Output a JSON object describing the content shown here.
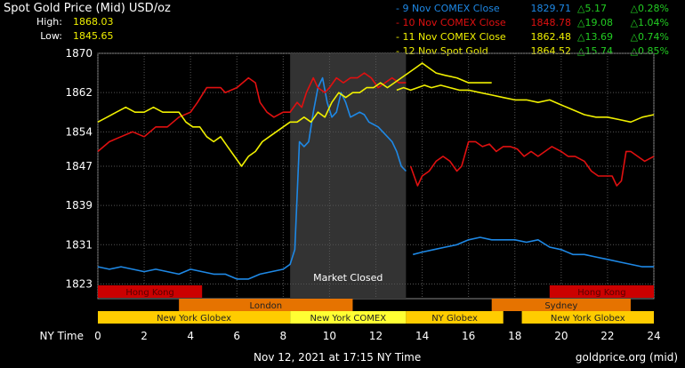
{
  "header": {
    "title": "Spot Gold Price (Mid) USD/oz",
    "high_label": "High:",
    "high_value": "1868.03",
    "low_label": "Low:",
    "low_value": "1845.65"
  },
  "legend": [
    {
      "label": "- 9 Nov COMEX Close",
      "price": "1829.71",
      "change": "△5.17",
      "pct": "△0.28%",
      "color": "#1e88e5"
    },
    {
      "label": "- 10 Nov COMEX Close",
      "price": "1848.78",
      "change": "△19.08",
      "pct": "△1.04%",
      "color": "#e01010"
    },
    {
      "label": "- 11 Nov COMEX Close",
      "price": "1862.48",
      "change": "△13.69",
      "pct": "△0.74%",
      "color": "#f0f000"
    },
    {
      "label": "- 12 Nov Spot Gold",
      "price": "1864.52",
      "change": "△15.74",
      "pct": "△0.85%",
      "color": "#f0f000"
    }
  ],
  "colors": {
    "up": "#22cc22",
    "axis": "#ffffff",
    "grid": "#555555",
    "closed_band": "#333333"
  },
  "market_closed_label": "Market Closed",
  "sessions": {
    "row1": [
      {
        "label": "Hong Kong",
        "start": 0,
        "end": 4.5,
        "color": "#cc0000"
      },
      {
        "label": "Hong Kong",
        "start": 19.5,
        "end": 24,
        "color": "#cc0000"
      }
    ],
    "row2": [
      {
        "label": "London",
        "start": 3.5,
        "end": 11,
        "color": "#e67300"
      },
      {
        "label": "Sydney",
        "start": 17,
        "end": 23,
        "color": "#e67300"
      }
    ],
    "row3": [
      {
        "label": "New York Globex",
        "start": 0,
        "end": 8.3,
        "color": "#ffcc00"
      },
      {
        "label": "New York COMEX",
        "start": 8.3,
        "end": 13.3,
        "color": "#ffff33"
      },
      {
        "label": "NY Globex",
        "start": 13.3,
        "end": 17.5,
        "color": "#ffcc00"
      },
      {
        "label": "New York Globex",
        "start": 18.3,
        "end": 24,
        "color": "#ffcc00"
      }
    ]
  },
  "footer": {
    "x_axis_name": "NY Time",
    "timestamp": "Nov 12, 2021 at 17:15 NY Time",
    "source": "goldprice.org (mid)"
  },
  "chart_data": {
    "type": "line",
    "title": "Spot Gold Price (Mid) USD/oz",
    "xlabel": "NY Time",
    "ylabel": "",
    "xlim": [
      0,
      24
    ],
    "ylim": [
      1820,
      1870
    ],
    "x_ticks": [
      0,
      2,
      4,
      6,
      8,
      10,
      12,
      14,
      16,
      18,
      20,
      22,
      24
    ],
    "y_ticks": [
      1823,
      1831,
      1839,
      1847,
      1854,
      1862,
      1870
    ],
    "grid": true,
    "market_closed": [
      8.3,
      13.3
    ],
    "series": [
      {
        "name": "9 Nov COMEX Close",
        "color": "#1e88e5",
        "segments": [
          [
            [
              0,
              1826.5
            ],
            [
              0.5,
              1826
            ],
            [
              1,
              1826.5
            ],
            [
              1.5,
              1826
            ],
            [
              2,
              1825.5
            ],
            [
              2.5,
              1826
            ],
            [
              3,
              1825.5
            ],
            [
              3.5,
              1825
            ],
            [
              4,
              1826
            ],
            [
              4.5,
              1825.5
            ],
            [
              5,
              1825
            ],
            [
              5.5,
              1825
            ],
            [
              6,
              1824
            ],
            [
              6.5,
              1824
            ],
            [
              7,
              1825
            ],
            [
              7.5,
              1825.5
            ],
            [
              8,
              1826
            ],
            [
              8.3,
              1827
            ],
            [
              8.5,
              1830
            ],
            [
              8.7,
              1852
            ],
            [
              8.9,
              1851
            ],
            [
              9.1,
              1852
            ],
            [
              9.3,
              1858
            ],
            [
              9.5,
              1863
            ],
            [
              9.7,
              1865
            ],
            [
              9.9,
              1860
            ],
            [
              10.1,
              1857
            ],
            [
              10.3,
              1858
            ],
            [
              10.5,
              1862
            ],
            [
              10.7,
              1860
            ],
            [
              10.9,
              1857
            ],
            [
              11.1,
              1857.5
            ],
            [
              11.3,
              1858
            ],
            [
              11.5,
              1857.5
            ],
            [
              11.7,
              1856
            ],
            [
              11.9,
              1855.5
            ],
            [
              12.1,
              1855
            ],
            [
              12.3,
              1854
            ],
            [
              12.5,
              1853
            ],
            [
              12.7,
              1852
            ],
            [
              12.9,
              1850
            ],
            [
              13.1,
              1847
            ],
            [
              13.3,
              1846
            ]
          ],
          [
            [
              13.6,
              1829
            ],
            [
              14,
              1829.5
            ],
            [
              14.5,
              1830
            ],
            [
              15,
              1830.5
            ],
            [
              15.5,
              1831
            ],
            [
              16,
              1832
            ],
            [
              16.5,
              1832.5
            ],
            [
              17,
              1832
            ],
            [
              17.5,
              1832
            ],
            [
              18,
              1832
            ],
            [
              18.5,
              1831.5
            ],
            [
              19,
              1832
            ],
            [
              19.5,
              1830.5
            ],
            [
              20,
              1830
            ],
            [
              20.5,
              1829
            ],
            [
              21,
              1829
            ],
            [
              21.5,
              1828.5
            ],
            [
              22,
              1828
            ],
            [
              22.5,
              1827.5
            ],
            [
              23,
              1827
            ],
            [
              23.5,
              1826.5
            ],
            [
              24,
              1826.5
            ]
          ]
        ]
      },
      {
        "name": "10 Nov COMEX Close",
        "color": "#e01010",
        "segments": [
          [
            [
              0,
              1850
            ],
            [
              0.5,
              1852
            ],
            [
              1,
              1853
            ],
            [
              1.5,
              1854
            ],
            [
              2,
              1853
            ],
            [
              2.5,
              1855
            ],
            [
              3,
              1855
            ],
            [
              3.5,
              1857
            ],
            [
              4,
              1858
            ],
            [
              4.3,
              1860
            ],
            [
              4.7,
              1863
            ],
            [
              5,
              1863
            ],
            [
              5.3,
              1863
            ],
            [
              5.5,
              1862
            ],
            [
              6,
              1863
            ],
            [
              6.5,
              1865
            ],
            [
              6.8,
              1864
            ],
            [
              7,
              1860
            ],
            [
              7.3,
              1858
            ],
            [
              7.6,
              1857
            ],
            [
              8,
              1858
            ],
            [
              8.3,
              1858
            ],
            [
              8.6,
              1860
            ],
            [
              8.8,
              1859
            ],
            [
              9,
              1862
            ],
            [
              9.3,
              1865
            ],
            [
              9.5,
              1863
            ],
            [
              9.8,
              1862
            ],
            [
              10,
              1863
            ],
            [
              10.3,
              1865
            ],
            [
              10.6,
              1864
            ],
            [
              10.9,
              1865
            ],
            [
              11.2,
              1865
            ],
            [
              11.5,
              1866
            ],
            [
              11.8,
              1865
            ],
            [
              12.1,
              1863
            ],
            [
              12.4,
              1864
            ],
            [
              12.7,
              1865
            ],
            [
              13,
              1864
            ],
            [
              13.3,
              1864
            ]
          ],
          [
            [
              13.5,
              1847
            ],
            [
              13.8,
              1843
            ],
            [
              14,
              1845
            ],
            [
              14.3,
              1846
            ],
            [
              14.6,
              1848
            ],
            [
              14.9,
              1849
            ],
            [
              15.2,
              1848
            ],
            [
              15.5,
              1846
            ],
            [
              15.7,
              1847
            ],
            [
              16,
              1852
            ],
            [
              16.3,
              1852
            ],
            [
              16.6,
              1851
            ],
            [
              16.9,
              1851.5
            ],
            [
              17.2,
              1850
            ],
            [
              17.5,
              1851
            ],
            [
              17.8,
              1851
            ],
            [
              18.1,
              1850.5
            ],
            [
              18.4,
              1849
            ],
            [
              18.7,
              1850
            ],
            [
              19,
              1849
            ],
            [
              19.3,
              1850
            ],
            [
              19.6,
              1851
            ],
            [
              20,
              1850
            ],
            [
              20.3,
              1849
            ],
            [
              20.6,
              1849
            ],
            [
              21,
              1848
            ],
            [
              21.3,
              1846
            ],
            [
              21.6,
              1845
            ],
            [
              21.9,
              1845
            ],
            [
              22.2,
              1845
            ],
            [
              22.4,
              1843
            ],
            [
              22.6,
              1844
            ],
            [
              22.8,
              1850
            ],
            [
              23,
              1850
            ],
            [
              23.3,
              1849
            ],
            [
              23.6,
              1848
            ],
            [
              24,
              1849
            ]
          ]
        ]
      },
      {
        "name": "11 Nov COMEX Close",
        "color": "#f0f000",
        "segments": [
          [
            [
              0,
              1856
            ],
            [
              0.4,
              1857
            ],
            [
              0.8,
              1858
            ],
            [
              1.2,
              1859
            ],
            [
              1.6,
              1858
            ],
            [
              2,
              1858
            ],
            [
              2.4,
              1859
            ],
            [
              2.8,
              1858
            ],
            [
              3.2,
              1858
            ],
            [
              3.5,
              1858
            ],
            [
              3.8,
              1856
            ],
            [
              4.1,
              1855
            ],
            [
              4.4,
              1855
            ],
            [
              4.7,
              1853
            ],
            [
              5,
              1852
            ],
            [
              5.3,
              1853
            ],
            [
              5.6,
              1851
            ],
            [
              5.9,
              1849
            ],
            [
              6.2,
              1847
            ],
            [
              6.5,
              1849
            ],
            [
              6.8,
              1850
            ],
            [
              7.1,
              1852
            ],
            [
              7.4,
              1853
            ],
            [
              7.7,
              1854
            ],
            [
              8,
              1855
            ],
            [
              8.3,
              1856
            ],
            [
              8.6,
              1856
            ],
            [
              8.9,
              1857
            ],
            [
              9.2,
              1856
            ],
            [
              9.5,
              1858
            ],
            [
              9.8,
              1857
            ],
            [
              10.1,
              1860
            ],
            [
              10.4,
              1862
            ],
            [
              10.7,
              1861
            ],
            [
              11,
              1862
            ],
            [
              11.3,
              1862
            ],
            [
              11.6,
              1863
            ],
            [
              11.9,
              1863
            ],
            [
              12.2,
              1864
            ],
            [
              12.5,
              1863
            ],
            [
              12.8,
              1864
            ],
            [
              13.1,
              1865
            ],
            [
              13.4,
              1866
            ],
            [
              13.7,
              1867
            ],
            [
              14,
              1868
            ],
            [
              14.3,
              1867
            ],
            [
              14.6,
              1866
            ],
            [
              15,
              1865.5
            ],
            [
              15.5,
              1865
            ],
            [
              16,
              1864
            ],
            [
              16.5,
              1864
            ],
            [
              17,
              1864
            ]
          ]
        ]
      },
      {
        "name": "12 Nov Spot Gold",
        "color": "#f0f000",
        "segments": [
          [
            [
              12.9,
              1862.5
            ],
            [
              13.2,
              1863
            ],
            [
              13.5,
              1862.5
            ],
            [
              13.8,
              1863
            ],
            [
              14.1,
              1863.5
            ],
            [
              14.4,
              1863
            ],
            [
              14.8,
              1863.5
            ],
            [
              15.2,
              1863
            ],
            [
              15.6,
              1862.5
            ],
            [
              16,
              1862.5
            ],
            [
              16.5,
              1862
            ],
            [
              17,
              1861.5
            ],
            [
              17.5,
              1861
            ],
            [
              18,
              1860.5
            ],
            [
              18.5,
              1860.5
            ],
            [
              19,
              1860
            ],
            [
              19.5,
              1860.5
            ],
            [
              20,
              1859.5
            ],
            [
              20.5,
              1858.5
            ],
            [
              21,
              1857.5
            ],
            [
              21.5,
              1857
            ],
            [
              22,
              1857
            ],
            [
              22.5,
              1856.5
            ],
            [
              23,
              1856
            ],
            [
              23.5,
              1857
            ],
            [
              24,
              1857.5
            ]
          ]
        ]
      }
    ]
  }
}
